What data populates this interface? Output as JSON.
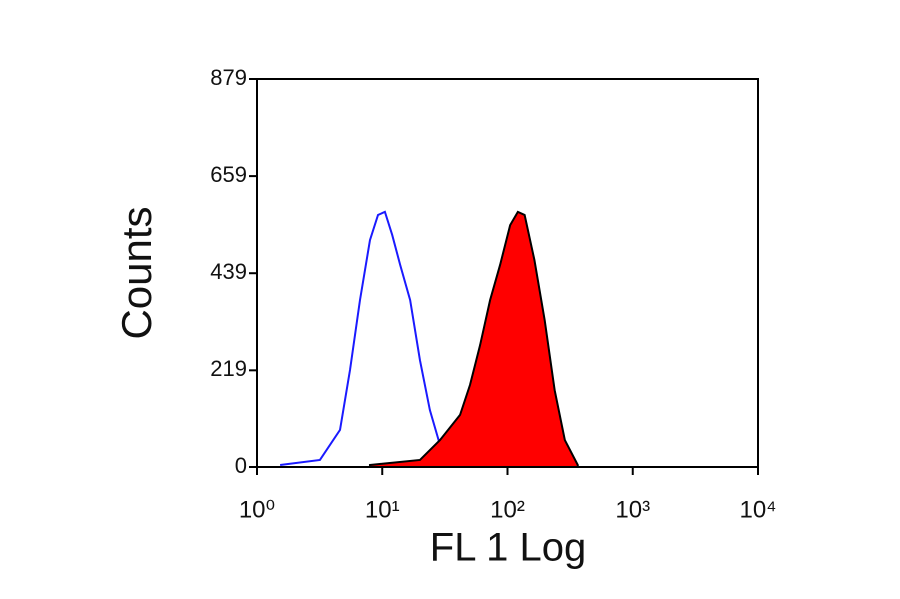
{
  "chart_data": {
    "type": "histogram-overlay",
    "xlabel": "FL 1 Log",
    "ylabel": "Counts",
    "xscale": "log",
    "xlim": [
      1,
      10000
    ],
    "ylim": [
      0,
      879
    ],
    "xticks": [
      {
        "value": 1,
        "label": "10⁰"
      },
      {
        "value": 10,
        "label": "10¹"
      },
      {
        "value": 100,
        "label": "10²"
      },
      {
        "value": 1000,
        "label": "10³"
      },
      {
        "value": 10000,
        "label": "10⁴"
      }
    ],
    "yticks": [
      0,
      219,
      439,
      659,
      879
    ],
    "series": [
      {
        "color": "#1a1aff",
        "fill": false,
        "x": [
          1.53,
          3.18,
          4.6,
          5.53,
          6.64,
          7.98,
          9.25,
          10.5,
          12.0,
          13.9,
          16.7,
          20.0,
          24.0,
          28.9,
          41.8,
          87,
          262
        ],
        "values": [
          4.5,
          16,
          84,
          220,
          378,
          514,
          571,
          578,
          526,
          458,
          378,
          242,
          129,
          50,
          20,
          11,
          2
        ]
      },
      {
        "color": "#ff0000",
        "fill": true,
        "edge": "#000000",
        "x": [
          7.98,
          20.0,
          28.9,
          41.8,
          50.2,
          60.4,
          72.6,
          87.3,
          105,
          121,
          137,
          164,
          198,
          238,
          287,
          364
        ],
        "values": [
          4.5,
          16,
          61,
          118,
          186,
          276,
          378,
          458,
          548,
          578,
          571,
          469,
          333,
          174,
          61,
          4.5
        ]
      }
    ]
  }
}
